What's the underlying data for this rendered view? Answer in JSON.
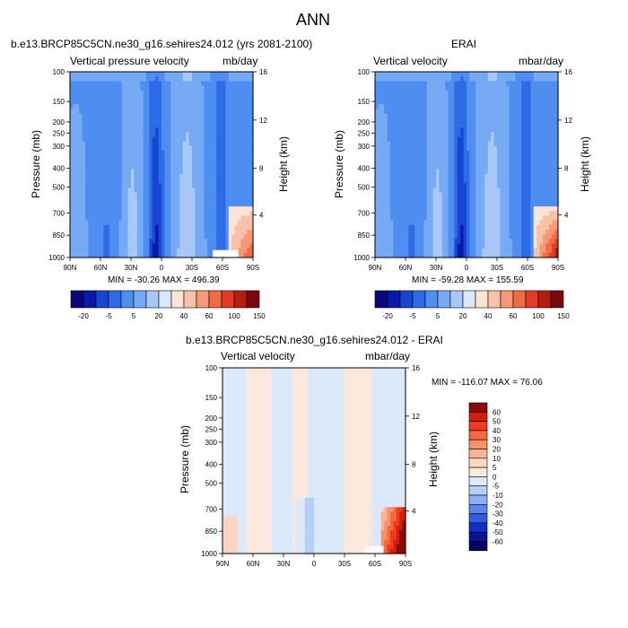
{
  "page": {
    "title": "ANN"
  },
  "chart_data": [
    {
      "type": "heatmap",
      "subtitle": "b.e13.BRCP85C5CN.ne30_g16.sehires24.012 (yrs 2081-2100)",
      "left_string": "Vertical pressure velocity",
      "right_string": "mb/day",
      "xlabel": "",
      "ylabel": "Pressure (mb)",
      "ylabel_right": "Height (km)",
      "x_ticks": [
        "90N",
        "60N",
        "30N",
        "0",
        "30S",
        "60S",
        "90S"
      ],
      "y_ticks": [
        "100",
        "150",
        "200",
        "250",
        "300",
        "400",
        "500",
        "700",
        "850",
        "1000"
      ],
      "y_right_ticks": [
        "16",
        "12",
        "8",
        "4"
      ],
      "stats": "MIN = -30.26   MAX = 496.39",
      "min": -30.26,
      "max": 496.39,
      "colorbar_labels": [
        "-20",
        "-5",
        "5",
        "20",
        "40",
        "60",
        "100",
        "150"
      ]
    },
    {
      "type": "heatmap",
      "subtitle": "ERAI",
      "left_string": "Vertical velocity",
      "right_string": "mbar/day",
      "xlabel": "",
      "ylabel": "Pressure (mb)",
      "ylabel_right": "Height (km)",
      "x_ticks": [
        "90N",
        "60N",
        "30N",
        "0",
        "30S",
        "60S",
        "90S"
      ],
      "y_ticks": [
        "100",
        "150",
        "200",
        "250",
        "300",
        "400",
        "500",
        "700",
        "850",
        "1000"
      ],
      "y_right_ticks": [
        "16",
        "12",
        "8",
        "4"
      ],
      "stats": "MIN = -59.28   MAX = 155.59",
      "min": -59.28,
      "max": 155.59,
      "colorbar_labels": [
        "-20",
        "-5",
        "5",
        "20",
        "40",
        "60",
        "100",
        "150"
      ]
    },
    {
      "type": "heatmap",
      "subtitle": "b.e13.BRCP85C5CN.ne30_g16.sehires24.012 - ERAI",
      "left_string": "Vertical velocity",
      "right_string": "mbar/day",
      "xlabel": "",
      "ylabel": "Pressure (mb)",
      "ylabel_right": "Height (km)",
      "x_ticks": [
        "90N",
        "60N",
        "30N",
        "0",
        "30S",
        "60S",
        "90S"
      ],
      "y_ticks": [
        "100",
        "150",
        "200",
        "250",
        "300",
        "400",
        "500",
        "700",
        "850",
        "1000"
      ],
      "y_right_ticks": [
        "16",
        "12",
        "8",
        "4"
      ],
      "stats": "MIN = -116.07   MAX =  76.06",
      "min": -116.07,
      "max": 76.06,
      "colorbar_labels": [
        "60",
        "50",
        "40",
        "30",
        "20",
        "10",
        "5",
        "0",
        "-5",
        "-10",
        "-20",
        "-30",
        "-40",
        "-50",
        "-60"
      ]
    }
  ],
  "colors": {
    "top_scale": [
      "#08087a",
      "#0a1aa8",
      "#1746d2",
      "#2d6ce6",
      "#4e8ef0",
      "#77aaf4",
      "#a9c8f8",
      "#dbe8fb",
      "#fce4d6",
      "#f8c2a8",
      "#f59a74",
      "#f06c44",
      "#e23c22",
      "#b41e10",
      "#7a0808"
    ],
    "diff_scale": [
      "#8a0a0a",
      "#d11e10",
      "#f03c1e",
      "#f46a40",
      "#f6926a",
      "#f8b494",
      "#fbd6c2",
      "#fde9dc",
      "#dbe9fb",
      "#b6cff6",
      "#8cb0f0",
      "#5a86e8",
      "#2f5fe0",
      "#1230c8",
      "#0a1296",
      "#05055e"
    ]
  }
}
